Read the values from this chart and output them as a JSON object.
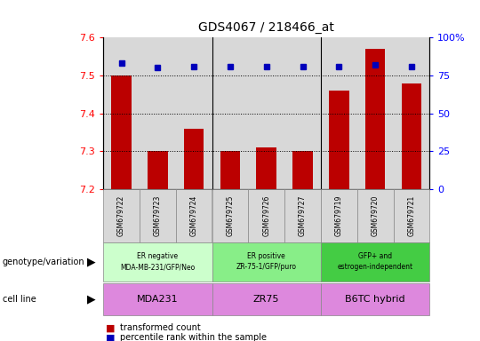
{
  "title": "GDS4067 / 218466_at",
  "samples": [
    "GSM679722",
    "GSM679723",
    "GSM679724",
    "GSM679725",
    "GSM679726",
    "GSM679727",
    "GSM679719",
    "GSM679720",
    "GSM679721"
  ],
  "bar_values": [
    7.5,
    7.3,
    7.36,
    7.3,
    7.31,
    7.3,
    7.46,
    7.57,
    7.48
  ],
  "percentile_values": [
    83,
    80,
    81,
    81,
    81,
    81,
    81,
    82,
    81
  ],
  "ylim_left": [
    7.2,
    7.6
  ],
  "ylim_right": [
    0,
    100
  ],
  "yticks_left": [
    7.2,
    7.3,
    7.4,
    7.5,
    7.6
  ],
  "yticks_right": [
    0,
    25,
    50,
    75,
    100
  ],
  "bar_color": "#bb0000",
  "dot_color": "#0000bb",
  "gridline_y": [
    7.3,
    7.4,
    7.5
  ],
  "group_colors": [
    "#ccffcc",
    "#88ee88",
    "#44cc44"
  ],
  "cell_color": "#dd88dd",
  "groups": [
    {
      "label": "ER negative\nMDA-MB-231/GFP/Neo",
      "start": 0,
      "end": 3
    },
    {
      "label": "ER positive\nZR-75-1/GFP/puro",
      "start": 3,
      "end": 6
    },
    {
      "label": "GFP+ and\nestrogen-independent",
      "start": 6,
      "end": 9
    }
  ],
  "cell_lines": [
    {
      "label": "MDA231",
      "start": 0,
      "end": 3
    },
    {
      "label": "ZR75",
      "start": 3,
      "end": 6
    },
    {
      "label": "B6TC hybrid",
      "start": 6,
      "end": 9
    }
  ],
  "left_labels": [
    "genotype/variation",
    "cell line"
  ],
  "legend": [
    "transformed count",
    "percentile rank within the sample"
  ],
  "col_bg": "#d8d8d8"
}
